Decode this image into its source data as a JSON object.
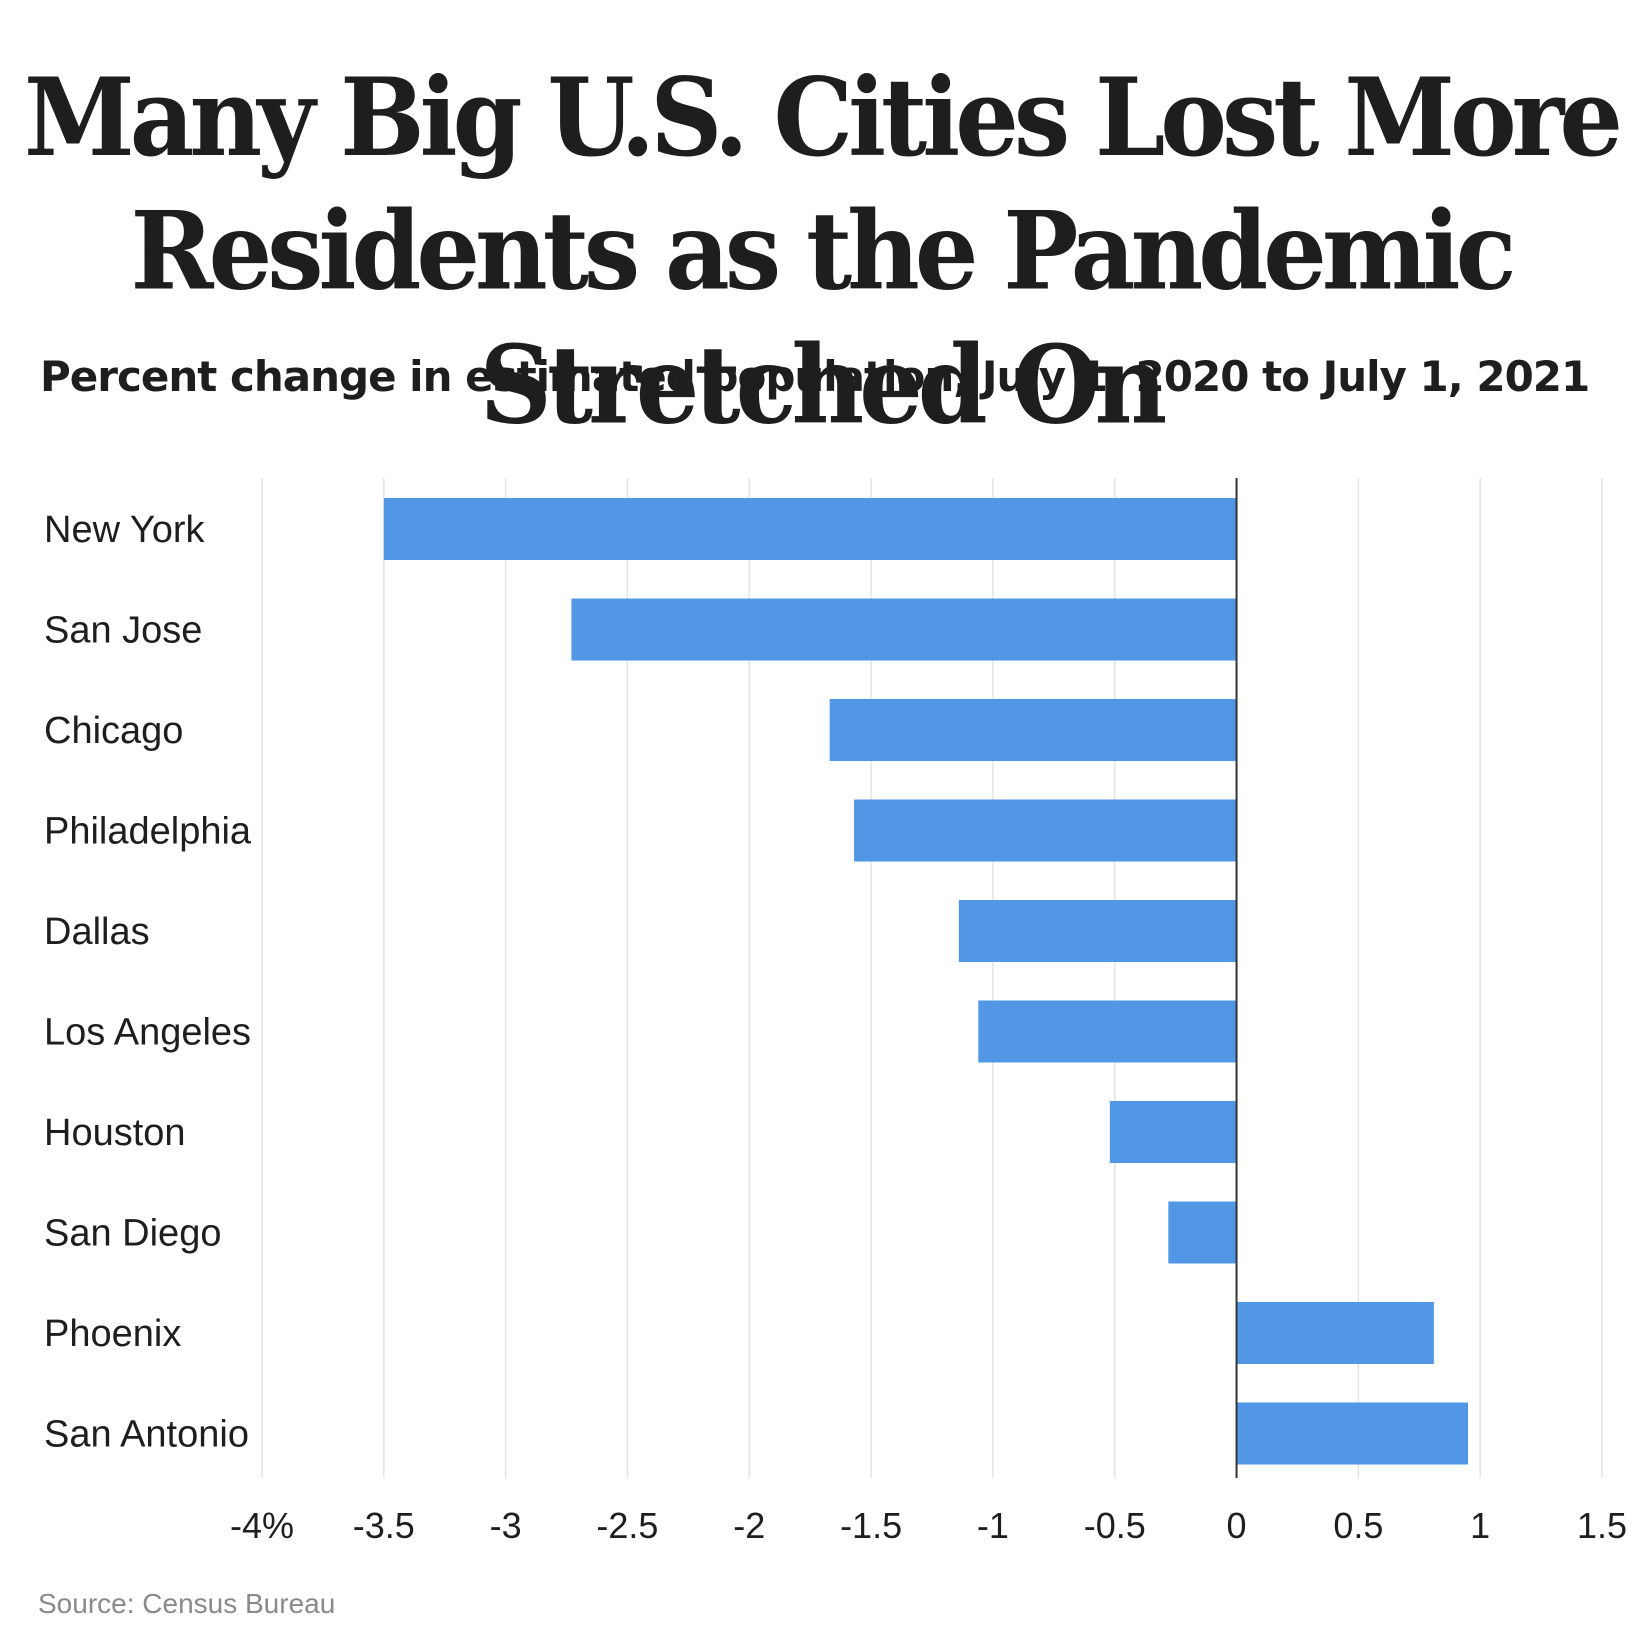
{
  "title_lines": [
    "Many Big U.S. Cities Lost More",
    "Residents as the Pandemic Stretched On"
  ],
  "subtitle": "Percent change in estimated population, July 1, 2020 to July 1, 2021",
  "source": "Source: Census Bureau",
  "colors": {
    "bar": "#5297e6",
    "grid": "#e4e4e4",
    "zero_axis": "#333333",
    "text": "#1e1e1e"
  },
  "chart_data": {
    "type": "bar",
    "orientation": "horizontal",
    "title": "Many Big U.S. Cities Lost More Residents as the Pandemic Stretched On",
    "subtitle": "Percent change in estimated population, July 1, 2020 to July 1, 2021",
    "categories": [
      "New York",
      "San Jose",
      "Chicago",
      "Philadelphia",
      "Dallas",
      "Los Angeles",
      "Houston",
      "San Diego",
      "Phoenix",
      "San Antonio"
    ],
    "values": [
      -3.5,
      -2.73,
      -1.67,
      -1.57,
      -1.14,
      -1.06,
      -0.52,
      -0.28,
      0.81,
      0.95
    ],
    "xlim": [
      -4,
      1.5
    ],
    "xticks": [
      -4,
      -3.5,
      -3,
      -2.5,
      -2,
      -1.5,
      -1,
      -0.5,
      0,
      0.5,
      1,
      1.5
    ],
    "xtick_labels": [
      "-4%",
      "-3.5",
      "-3",
      "-2.5",
      "-2",
      "-1.5",
      "-1",
      "-0.5",
      "0",
      "0.5",
      "1",
      "1.5"
    ],
    "grid": "vertical",
    "legend": "none"
  }
}
